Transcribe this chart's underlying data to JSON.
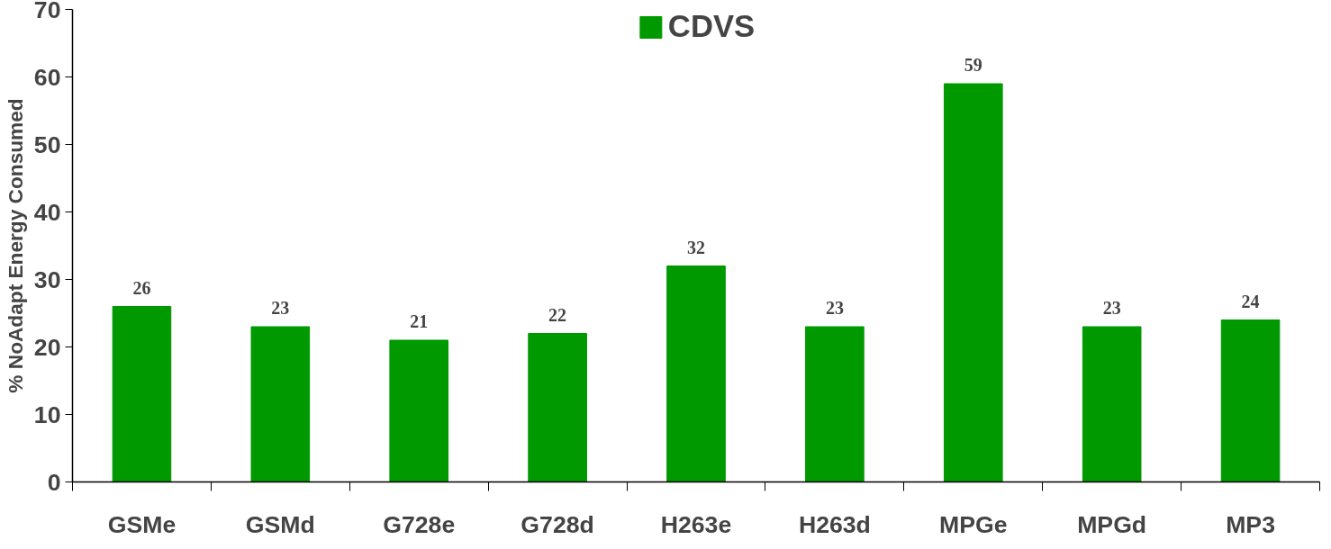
{
  "chart_data": {
    "type": "bar",
    "ylabel": "% NoAdapt Energy Consumed",
    "categories": [
      "GSMe",
      "GSMd",
      "G728e",
      "G728d",
      "H263e",
      "H263d",
      "MPGe",
      "MPGd",
      "MP3"
    ],
    "series": [
      {
        "name": "CDVS",
        "color": "#009900",
        "values": [
          26,
          23,
          21,
          22,
          32,
          23,
          59,
          23,
          24
        ]
      }
    ],
    "ylim": [
      0,
      70
    ],
    "yticks": [
      0,
      10,
      20,
      30,
      40,
      50,
      60,
      70
    ],
    "grid": false,
    "legend": "top",
    "data_labels": true
  }
}
